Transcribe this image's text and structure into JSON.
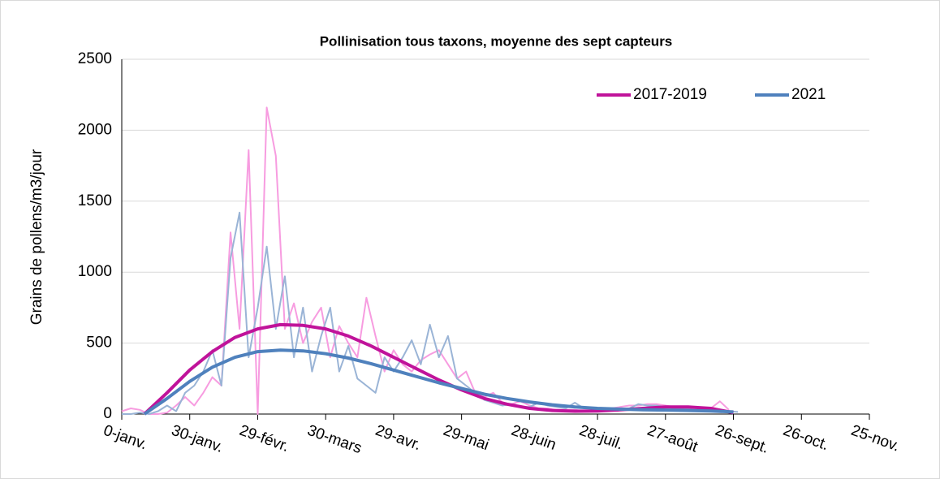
{
  "chart_data": {
    "type": "line",
    "title": "Pollinisation tous taxons, moyenne des sept capteurs",
    "y_label": "Grains de pollens/m3/jour",
    "xlim": [
      0,
      330
    ],
    "xticks": [
      {
        "value": 0,
        "label": "0-janv."
      },
      {
        "value": 30,
        "label": "30-janv."
      },
      {
        "value": 60,
        "label": "29-févr."
      },
      {
        "value": 90,
        "label": "30-mars"
      },
      {
        "value": 120,
        "label": "29-avr."
      },
      {
        "value": 150,
        "label": "29-mai"
      },
      {
        "value": 180,
        "label": "28-juin"
      },
      {
        "value": 210,
        "label": "28-juil."
      },
      {
        "value": 240,
        "label": "27-août"
      },
      {
        "value": 270,
        "label": "26-sept."
      },
      {
        "value": 300,
        "label": "26-oct."
      },
      {
        "value": 330,
        "label": "25-nov."
      }
    ],
    "ylim": [
      0,
      2500
    ],
    "yticks": [
      0,
      500,
      1000,
      1500,
      2000,
      2500
    ],
    "grid": true,
    "legend": "upper right",
    "x": [
      0,
      4,
      8,
      12,
      16,
      20,
      24,
      28,
      32,
      36,
      40,
      44,
      48,
      52,
      56,
      60,
      64,
      68,
      72,
      76,
      80,
      84,
      88,
      92,
      96,
      100,
      104,
      108,
      112,
      116,
      120,
      124,
      128,
      132,
      136,
      140,
      144,
      148,
      152,
      156,
      160,
      164,
      168,
      172,
      176,
      180,
      184,
      188,
      192,
      196,
      200,
      204,
      208,
      212,
      216,
      220,
      224,
      228,
      232,
      236,
      240,
      244,
      248,
      252,
      256,
      260,
      264,
      268,
      272
    ],
    "trend_x": [
      10,
      20,
      30,
      40,
      50,
      60,
      70,
      80,
      90,
      100,
      110,
      120,
      130,
      140,
      150,
      160,
      170,
      180,
      190,
      200,
      210,
      220,
      230,
      240,
      250,
      260,
      270
    ],
    "series": [
      {
        "name": "2017-2019",
        "color": "#f79ce0",
        "trend_color": "#c0139a",
        "values": [
          20,
          40,
          30,
          0,
          0,
          10,
          60,
          120,
          60,
          150,
          260,
          200,
          1280,
          600,
          1860,
          0,
          2160,
          1820,
          600,
          780,
          500,
          650,
          750,
          400,
          620,
          500,
          400,
          820,
          550,
          300,
          450,
          350,
          300,
          380,
          420,
          450,
          350,
          250,
          300,
          150,
          120,
          150,
          80,
          70,
          90,
          60,
          40,
          40,
          30,
          30,
          30,
          20,
          20,
          30,
          40,
          50,
          60,
          60,
          70,
          70,
          60,
          50,
          40,
          30,
          30,
          40,
          90,
          30,
          null
        ],
        "trend_values": [
          0,
          150,
          310,
          440,
          540,
          600,
          630,
          625,
          600,
          550,
          480,
          400,
          320,
          240,
          170,
          110,
          70,
          40,
          25,
          20,
          22,
          30,
          40,
          50,
          50,
          40,
          10
        ]
      },
      {
        "name": "2021",
        "color": "#9ab4d6",
        "trend_color": "#4f81bd",
        "values": [
          0,
          0,
          10,
          0,
          20,
          60,
          20,
          150,
          200,
          300,
          450,
          200,
          1100,
          1420,
          400,
          750,
          1180,
          600,
          970,
          400,
          750,
          300,
          550,
          750,
          300,
          480,
          250,
          200,
          150,
          400,
          300,
          400,
          520,
          350,
          630,
          400,
          550,
          250,
          200,
          150,
          100,
          80,
          60,
          70,
          50,
          50,
          80,
          60,
          50,
          40,
          80,
          40,
          40,
          30,
          30,
          40,
          40,
          70,
          60,
          60,
          50,
          40,
          40,
          30,
          30,
          20,
          20,
          20,
          15
        ],
        "trend_values": [
          0,
          110,
          230,
          330,
          400,
          440,
          450,
          445,
          425,
          395,
          355,
          310,
          265,
          220,
          180,
          140,
          110,
          85,
          65,
          50,
          40,
          35,
          30,
          28,
          25,
          22,
          15
        ]
      }
    ]
  }
}
